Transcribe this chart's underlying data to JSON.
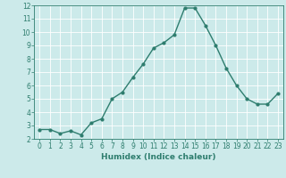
{
  "x": [
    0,
    1,
    2,
    3,
    4,
    5,
    6,
    7,
    8,
    9,
    10,
    11,
    12,
    13,
    14,
    15,
    16,
    17,
    18,
    19,
    20,
    21,
    22,
    23
  ],
  "y": [
    2.7,
    2.7,
    2.4,
    2.6,
    2.3,
    3.2,
    3.5,
    5.0,
    5.5,
    6.6,
    7.6,
    8.8,
    9.2,
    9.8,
    11.8,
    11.8,
    10.5,
    9.0,
    7.3,
    6.0,
    5.0,
    4.6,
    4.6,
    5.4
  ],
  "line_color": "#2e7d6e",
  "marker": "o",
  "marker_size": 2.0,
  "bg_color": "#cceaea",
  "grid_color": "#ffffff",
  "xlabel": "Humidex (Indice chaleur)",
  "ylim": [
    2,
    12
  ],
  "xlim": [
    -0.5,
    23.5
  ],
  "yticks": [
    2,
    3,
    4,
    5,
    6,
    7,
    8,
    9,
    10,
    11,
    12
  ],
  "xticks": [
    0,
    1,
    2,
    3,
    4,
    5,
    6,
    7,
    8,
    9,
    10,
    11,
    12,
    13,
    14,
    15,
    16,
    17,
    18,
    19,
    20,
    21,
    22,
    23
  ],
  "tick_label_size": 5.5,
  "xlabel_size": 6.5,
  "line_width": 1.0
}
